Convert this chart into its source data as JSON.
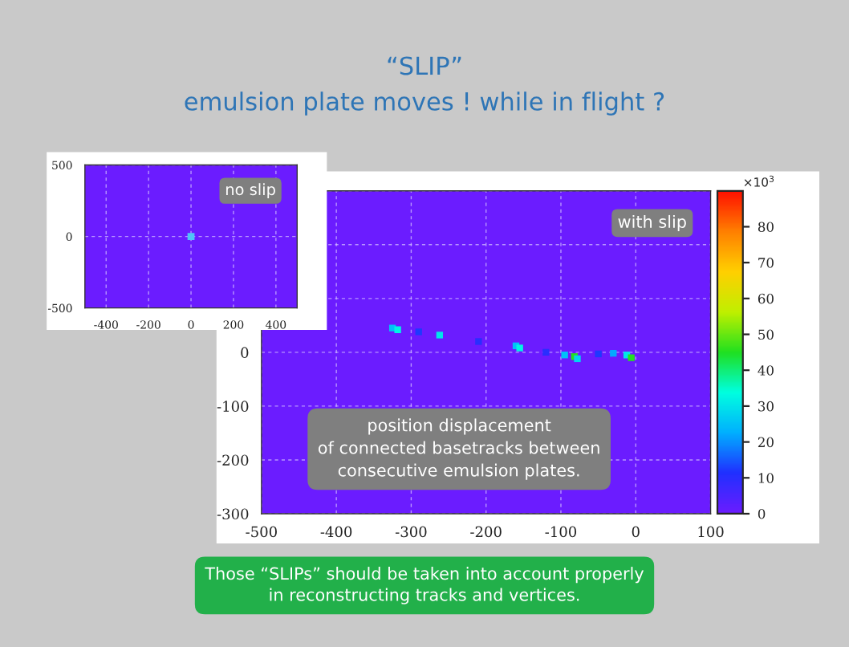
{
  "chart_data": [
    {
      "type": "scatter",
      "x": [
        0
      ],
      "values": [
        0
      ],
      "color": "#4fc3f7",
      "marker": "square",
      "xlim": [
        -500,
        500
      ],
      "xticks": [
        -400,
        -200,
        0,
        200,
        400
      ],
      "ylim": [
        -500,
        500
      ],
      "yticks": [
        -500,
        0,
        500
      ],
      "grid": true,
      "annotations": [
        "no slip"
      ]
    },
    {
      "type": "scatter",
      "title": "“SLIP”",
      "subtitle": "emulsion plate moves ! while in flight ?",
      "marker": "square",
      "x": [
        -325,
        -318,
        -290,
        -262,
        -210,
        -160,
        -155,
        -120,
        -95,
        -82,
        -78,
        -50,
        -30,
        -12,
        -6
      ],
      "values": [
        45,
        42,
        38,
        32,
        20,
        12,
        8,
        0,
        -5,
        -8,
        -12,
        -3,
        -2,
        -5,
        -10
      ],
      "cvalues": [
        25,
        32,
        12,
        30,
        10,
        25,
        32,
        10,
        25,
        45,
        28,
        12,
        22,
        30,
        45
      ],
      "clim": [
        0,
        90
      ],
      "cticks": [
        0,
        10,
        20,
        30,
        40,
        50,
        60,
        70,
        80
      ],
      "clabel": "×10$^{3}$",
      "xlim": [
        -500,
        100
      ],
      "xticks": [
        -500,
        -400,
        -300,
        -200,
        -100,
        0,
        100
      ],
      "ylim": [
        -300,
        300
      ],
      "yticks": [
        -300,
        -200,
        -100,
        0,
        {
          "value": 100,
          "label": null
        },
        {
          "value": 200,
          "label": null
        },
        {
          "value": 300,
          "label": null
        }
      ],
      "grid": true,
      "annotations": [
        "with slip",
        "position displacement\nof connected basetracks between\nconsecutive emulsion plates.",
        "Those “SLIPs” should be taken into account properly\nin reconstructing tracks and vertices."
      ]
    }
  ]
}
